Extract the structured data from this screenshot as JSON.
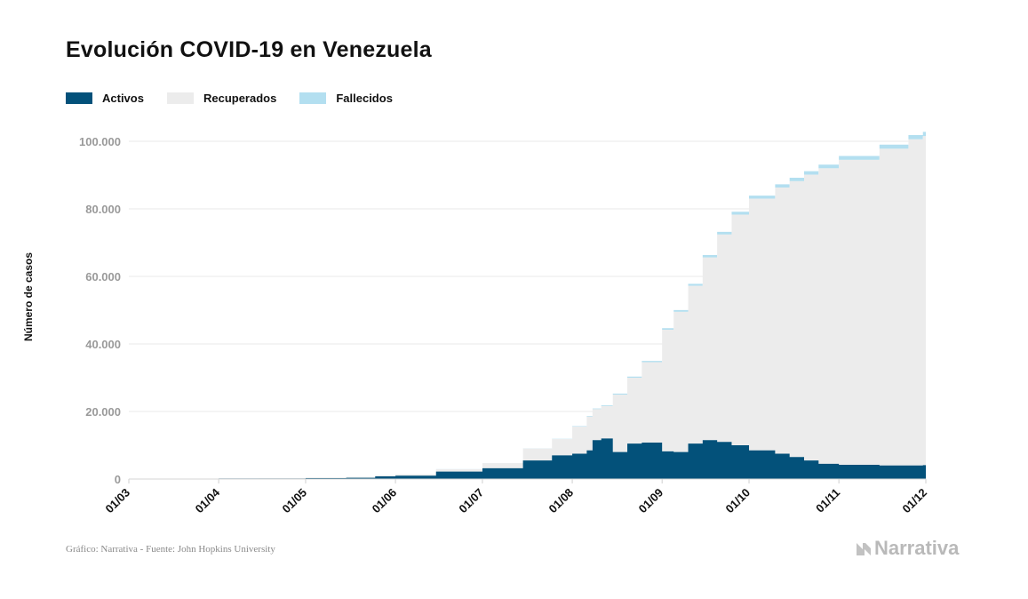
{
  "title": "Evolución COVID-19 en Venezuela",
  "legend": [
    {
      "label": "Activos",
      "color": "#03517a"
    },
    {
      "label": "Recuperados",
      "color": "#ececec"
    },
    {
      "label": "Fallecidos",
      "color": "#b3dff0"
    }
  ],
  "source": "Gráfico: Narrativa - Fuente: John Hopkins University",
  "brand": "Narrativa",
  "brand_icon": "narrativa-logo-icon",
  "chart_data": {
    "type": "area",
    "stacked": true,
    "ylabel": "Número de casos",
    "ylim": [
      0,
      105000
    ],
    "yticks": [
      {
        "value": 0,
        "label": "0"
      },
      {
        "value": 20000,
        "label": "20.000"
      },
      {
        "value": 40000,
        "label": "40.000"
      },
      {
        "value": 60000,
        "label": "60.000"
      },
      {
        "value": 80000,
        "label": "80.000"
      },
      {
        "value": 100000,
        "label": "100.000"
      }
    ],
    "xlim": [
      "2020-03-01",
      "2020-12-01"
    ],
    "xticks": [
      {
        "date": "2020-03-01",
        "label": "01/03"
      },
      {
        "date": "2020-04-01",
        "label": "01/04"
      },
      {
        "date": "2020-05-01",
        "label": "01/05"
      },
      {
        "date": "2020-06-01",
        "label": "01/06"
      },
      {
        "date": "2020-07-01",
        "label": "01/07"
      },
      {
        "date": "2020-08-01",
        "label": "01/08"
      },
      {
        "date": "2020-09-01",
        "label": "01/09"
      },
      {
        "date": "2020-10-01",
        "label": "01/10"
      },
      {
        "date": "2020-11-01",
        "label": "01/11"
      },
      {
        "date": "2020-12-01",
        "label": "01/12"
      }
    ],
    "grid": true,
    "legend_position": "top-left",
    "dates": [
      "2020-03-13",
      "2020-03-25",
      "2020-04-01",
      "2020-04-15",
      "2020-05-01",
      "2020-05-15",
      "2020-05-25",
      "2020-06-01",
      "2020-06-15",
      "2020-07-01",
      "2020-07-15",
      "2020-07-25",
      "2020-08-01",
      "2020-08-06",
      "2020-08-08",
      "2020-08-11",
      "2020-08-15",
      "2020-08-20",
      "2020-08-25",
      "2020-09-01",
      "2020-09-05",
      "2020-09-10",
      "2020-09-15",
      "2020-09-20",
      "2020-09-25",
      "2020-10-01",
      "2020-10-10",
      "2020-10-15",
      "2020-10-20",
      "2020-10-25",
      "2020-11-01",
      "2020-11-15",
      "2020-11-25",
      "2020-11-30"
    ],
    "series": [
      {
        "name": "Activos",
        "values": [
          10,
          80,
          150,
          180,
          250,
          350,
          800,
          1000,
          2200,
          3200,
          5500,
          7000,
          7500,
          8500,
          11500,
          12000,
          8000,
          10500,
          10800,
          8200,
          8000,
          10500,
          11500,
          11000,
          10000,
          8500,
          7500,
          6500,
          5500,
          4500,
          4200,
          4000,
          4000,
          4100
        ]
      },
      {
        "name": "Recuperados",
        "values": [
          0,
          20,
          80,
          120,
          200,
          300,
          300,
          400,
          700,
          1500,
          3500,
          4800,
          8000,
          10000,
          9200,
          9600,
          17000,
          19500,
          23800,
          36000,
          41500,
          46700,
          54100,
          61400,
          68300,
          74500,
          78800,
          81700,
          84600,
          87500,
          90300,
          93800,
          96600,
          97400
        ]
      },
      {
        "name": "Fallecidos",
        "values": [
          0,
          2,
          5,
          10,
          10,
          10,
          10,
          12,
          20,
          35,
          70,
          100,
          150,
          180,
          200,
          230,
          280,
          320,
          380,
          470,
          540,
          600,
          700,
          780,
          850,
          920,
          980,
          1010,
          1050,
          1100,
          1150,
          1200,
          1250,
          1280
        ]
      }
    ]
  }
}
